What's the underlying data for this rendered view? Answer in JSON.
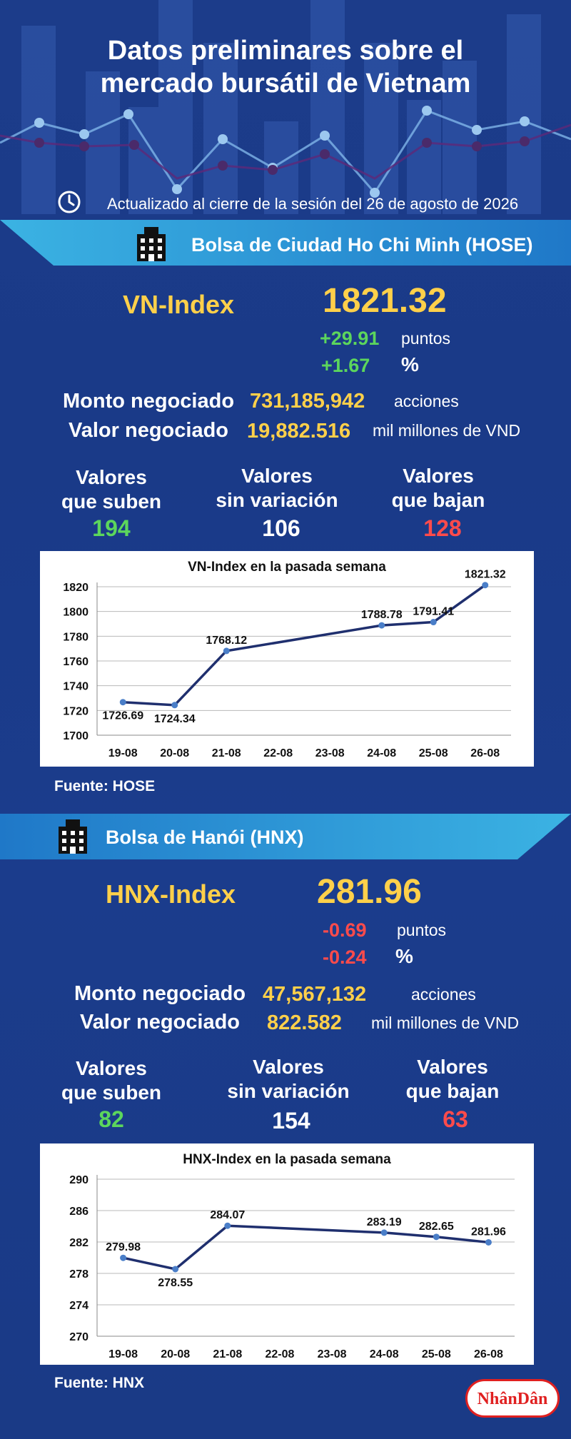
{
  "title_line1": "Datos preliminares sobre el",
  "title_line2": "mercado bursátil de Vietnam",
  "updated": "Actualizado al cierre de la sesión del 26 de agosto de 2026",
  "icons": {
    "clock": "clock-icon",
    "building": "building-icon"
  },
  "colors": {
    "background": "#1b3c8a",
    "accent_yellow": "#ffd04a",
    "up_green": "#5cd65c",
    "down_red": "#ff4b4b",
    "banner_blue": "#3bb3e3"
  },
  "hose": {
    "banner": "Bolsa de Ciudad Ho Chi Minh (HOSE)",
    "index_name": "VN-Index",
    "index_value": "1821.32",
    "change_points": "+29.91",
    "points_label": "puntos",
    "change_percent": "+1.67",
    "percent_label": "%",
    "volume_label": "Monto negociado",
    "volume_value": "731,185,942",
    "volume_unit": "acciones",
    "value_label": "Valor negociado",
    "value_value": "19,882.516",
    "value_unit": "mil millones de VND",
    "up_label_1": "Valores",
    "up_label_2": "que suben",
    "up_count": "194",
    "flat_label_1": "Valores",
    "flat_label_2": "sin variación",
    "flat_count": "106",
    "down_label_1": "Valores",
    "down_label_2": "que bajan",
    "down_count": "128",
    "source": "Fuente: HOSE"
  },
  "hnx": {
    "banner": "Bolsa de Hanói (HNX)",
    "index_name": "HNX-Index",
    "index_value": "281.96",
    "change_points": "-0.69",
    "points_label": "puntos",
    "change_percent": "-0.24",
    "percent_label": "%",
    "volume_label": "Monto negociado",
    "volume_value": "47,567,132",
    "volume_unit": "acciones",
    "value_label": "Valor negociado",
    "value_value": "822.582",
    "value_unit": "mil millones de VND",
    "up_label_1": "Valores",
    "up_label_2": "que suben",
    "up_count": "82",
    "flat_label_1": "Valores",
    "flat_label_2": "sin variación",
    "flat_count": "154",
    "down_label_1": "Valores",
    "down_label_2": "que bajan",
    "down_count": "63",
    "source": "Fuente:  HNX"
  },
  "logo_text": "NhânDân",
  "chart_data": [
    {
      "type": "line",
      "title": "VN-Index en la pasada semana",
      "categories": [
        "19-08",
        "20-08",
        "21-08",
        "22-08",
        "23-08",
        "24-08",
        "25-08",
        "26-08"
      ],
      "tick_labels": [
        "1700",
        "1720",
        "1740",
        "1760",
        "1780",
        "1800",
        "1820"
      ],
      "points": [
        {
          "x": "19-08",
          "y": 1726.69,
          "label": "1726.69"
        },
        {
          "x": "20-08",
          "y": 1724.34,
          "label": "1724.34"
        },
        {
          "x": "21-08",
          "y": 1768.12,
          "label": "1768.12"
        },
        {
          "x": "24-08",
          "y": 1788.78,
          "label": "1788.78"
        },
        {
          "x": "25-08",
          "y": 1791.41,
          "label": "1791.41"
        },
        {
          "x": "26-08",
          "y": 1821.32,
          "label": "1821.32"
        }
      ],
      "ylim": [
        1700,
        1820
      ],
      "grid": true,
      "line_color": "#1f2f6e",
      "marker_color": "#4a7ec8"
    },
    {
      "type": "line",
      "title": "HNX-Index en la pasada semana",
      "categories": [
        "19-08",
        "20-08",
        "21-08",
        "22-08",
        "23-08",
        "24-08",
        "25-08",
        "26-08"
      ],
      "tick_labels": [
        "270",
        "274",
        "278",
        "282",
        "286",
        "290"
      ],
      "points": [
        {
          "x": "19-08",
          "y": 279.98,
          "label": "279.98"
        },
        {
          "x": "20-08",
          "y": 278.55,
          "label": "278.55"
        },
        {
          "x": "21-08",
          "y": 284.07,
          "label": "284.07"
        },
        {
          "x": "24-08",
          "y": 283.19,
          "label": "283.19"
        },
        {
          "x": "25-08",
          "y": 282.65,
          "label": "282.65"
        },
        {
          "x": "26-08",
          "y": 281.96,
          "label": "281.96"
        }
      ],
      "ylim": [
        270,
        290
      ],
      "grid": true,
      "line_color": "#1f2f6e",
      "marker_color": "#4a7ec8"
    }
  ]
}
